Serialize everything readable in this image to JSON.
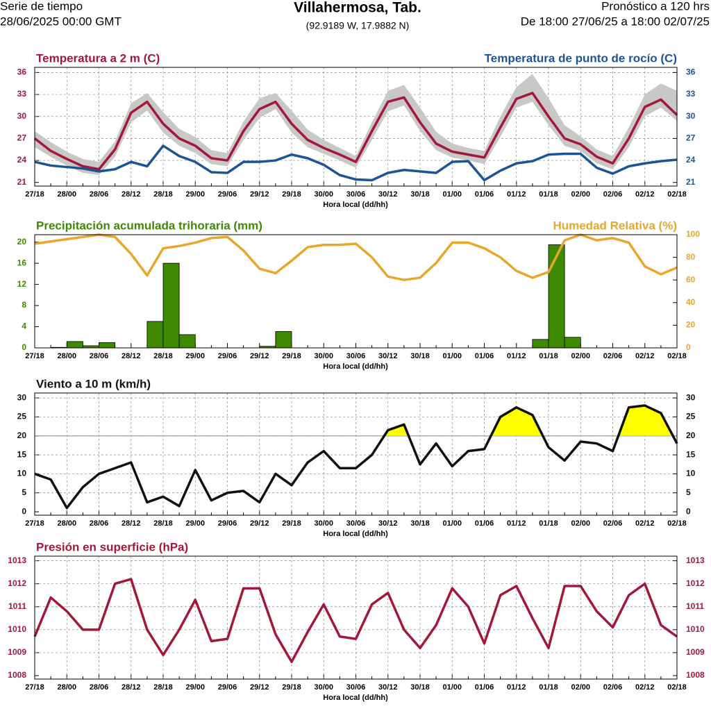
{
  "header": {
    "left_line1": "Serie de tiempo",
    "left_line2": "28/06/2025 00:00 GMT",
    "title": "Villahermosa, Tab.",
    "subtitle": "(92.9189 W, 17.9882 N)",
    "right_line1": "Pronóstico a 120 hrs",
    "right_line2": "De 18:00 27/06/25 a 18:00 02/07/25"
  },
  "chart_data": [
    {
      "type": "line",
      "xlabel": "Hora local (dd/hh)",
      "grid": true,
      "categories": [
        "27/18",
        null,
        "28/00",
        null,
        "28/06",
        null,
        "28/12",
        null,
        "28/18",
        null,
        "29/00",
        null,
        "29/06",
        null,
        "29/12",
        null,
        "29/18",
        null,
        "30/00",
        null,
        "30/06",
        null,
        "30/12",
        null,
        "30/18",
        null,
        "01/00",
        null,
        "01/06",
        null,
        "01/12",
        null,
        "01/18",
        null,
        "02/00",
        null,
        "02/06",
        null,
        "02/12",
        null,
        "02/18"
      ],
      "ylim": [
        20.5,
        36.7
      ],
      "yticks": [
        21,
        24,
        27,
        30,
        33,
        36
      ],
      "y2lim": [
        20.5,
        36.7
      ],
      "y2ticks": [
        21,
        24,
        27,
        30,
        33,
        36
      ],
      "band_color": "#c8c8c8",
      "series": [
        {
          "name": "Temperatura a 2 m (C)",
          "color": "#a3173a",
          "values": [
            27,
            25.3,
            24.2,
            23.2,
            22.8,
            25.5,
            30.5,
            32,
            29,
            27,
            26,
            24.3,
            24,
            28,
            31,
            32,
            29,
            26.8,
            25.7,
            24.8,
            23.8,
            28,
            32,
            32.6,
            29.2,
            26.3,
            25.2,
            24.8,
            24.4,
            28.5,
            32.4,
            33.2,
            30,
            27,
            26.2,
            24.5,
            23.6,
            27,
            31.3,
            32.3,
            30.2
          ],
          "range_high": [
            28,
            26.5,
            25.2,
            24.2,
            23.8,
            26.6,
            31.8,
            33.2,
            30.6,
            28.3,
            27.2,
            25.4,
            25,
            29.3,
            32.5,
            33.2,
            30.8,
            28.2,
            26.8,
            25.7,
            24.6,
            29.2,
            33.5,
            34.3,
            31.2,
            27.9,
            26.3,
            25.7,
            25.3,
            30,
            34,
            35.8,
            32.5,
            28.8,
            27.3,
            25.5,
            24.6,
            28.5,
            33,
            34.5,
            33.5
          ],
          "range_low": [
            25.8,
            24.5,
            23.3,
            22.3,
            22,
            24.5,
            29.2,
            30.8,
            27.8,
            26,
            25,
            23.5,
            23.2,
            26.8,
            29.8,
            31,
            27.8,
            25.8,
            24.9,
            24,
            23,
            26.8,
            30.7,
            31.5,
            28,
            25.4,
            24.4,
            24,
            23.5,
            27.2,
            31.2,
            32,
            28.8,
            26,
            25.3,
            23.6,
            22.8,
            25.8,
            30,
            31.2,
            29.4
          ]
        },
        {
          "name": "Temperatura de punto de rocío (C)",
          "color": "#1b5596",
          "axis": "y2",
          "values": [
            23.8,
            23.3,
            23.1,
            22.9,
            22.5,
            22.8,
            23.8,
            23.2,
            26,
            24.6,
            23.8,
            22.4,
            22.3,
            23.8,
            23.8,
            24,
            24.8,
            24.3,
            23.4,
            22,
            21.4,
            21.3,
            22.3,
            22.7,
            22.5,
            22.3,
            23.8,
            23.9,
            21.3,
            22.6,
            23.6,
            23.9,
            24.8,
            24.9,
            24.9,
            23,
            22.2,
            23.2,
            23.6,
            23.9,
            24.1
          ]
        }
      ]
    },
    {
      "type": "bar",
      "xlabel": "Hora local (dd/hh)",
      "grid": false,
      "categories": [
        "27/18",
        null,
        "28/00",
        null,
        "28/06",
        null,
        "28/12",
        null,
        "28/18",
        null,
        "29/00",
        null,
        "29/06",
        null,
        "29/12",
        null,
        "29/18",
        null,
        "30/00",
        null,
        "30/06",
        null,
        "30/12",
        null,
        "30/18",
        null,
        "01/00",
        null,
        "01/06",
        null,
        "01/12",
        null,
        "01/18",
        null,
        "02/00",
        null,
        "02/06",
        null,
        "02/12",
        null,
        "02/18"
      ],
      "ylim": [
        0,
        21.4
      ],
      "yticks": [
        0,
        4,
        8,
        12,
        16,
        20
      ],
      "y2lim": [
        0,
        100
      ],
      "y2ticks": [
        0,
        20,
        40,
        60,
        80,
        100
      ],
      "series": [
        {
          "name": "Precipitación acumulada trihoraria (mm)",
          "color": "#3d8a00",
          "type": "bar",
          "values": [
            0,
            0,
            0.1,
            1.2,
            0.4,
            1,
            0,
            0,
            5,
            16,
            2.5,
            0,
            0,
            0,
            0,
            0.3,
            3.1,
            0,
            0,
            0,
            0,
            0,
            0,
            0,
            0,
            0,
            0,
            0,
            0,
            0,
            0,
            0,
            1.6,
            19.5,
            2,
            0,
            0,
            0,
            0,
            0,
            0
          ]
        },
        {
          "name": "Humedad Relativa (%)",
          "color": "#e8a72a",
          "type": "line",
          "axis": "y2",
          "values": [
            92,
            94,
            96,
            98,
            100,
            98,
            83,
            64,
            88,
            90,
            93,
            97,
            98,
            86,
            70,
            66,
            77,
            89,
            91,
            91,
            92,
            80,
            63,
            60,
            62,
            75,
            93,
            93,
            88,
            80,
            68,
            62,
            67,
            95,
            100,
            95,
            97,
            93,
            72,
            65,
            71
          ]
        }
      ]
    },
    {
      "type": "line",
      "xlabel": "Hora local (dd/hh)",
      "grid": true,
      "threshold": 20,
      "threshold_color": "#999999",
      "categories": [
        "27/18",
        null,
        "28/00",
        null,
        "28/06",
        null,
        "28/12",
        null,
        "28/18",
        null,
        "29/00",
        null,
        "29/06",
        null,
        "29/12",
        null,
        "29/18",
        null,
        "30/00",
        null,
        "30/06",
        null,
        "30/12",
        null,
        "30/18",
        null,
        "01/00",
        null,
        "01/06",
        null,
        "01/12",
        null,
        "01/18",
        null,
        "02/00",
        null,
        "02/06",
        null,
        "02/12",
        null,
        "02/18"
      ],
      "ylim": [
        -0.9,
        31.3
      ],
      "yticks": [
        0,
        5,
        10,
        15,
        20,
        25,
        30
      ],
      "y2lim": [
        -0.9,
        31.3
      ],
      "y2ticks": [
        0,
        5,
        10,
        15,
        20,
        25,
        30
      ],
      "series": [
        {
          "name": "Viento a 10 m (km/h)",
          "color": "#111111",
          "fill_color": "#ffff00",
          "values": [
            10,
            8.5,
            1,
            6.5,
            10,
            11.5,
            13,
            2.5,
            4,
            1.5,
            11,
            3,
            5,
            5.5,
            2.5,
            10,
            7,
            13,
            16,
            11.5,
            11.5,
            15,
            21.5,
            23,
            12.5,
            18,
            12,
            16,
            16.5,
            25,
            27.5,
            25.5,
            17,
            13.5,
            18.5,
            18,
            16,
            27.5,
            28,
            26,
            18
          ]
        }
      ]
    },
    {
      "type": "line",
      "xlabel": "Hora local (dd/hh)",
      "grid": true,
      "categories": [
        "27/18",
        null,
        "28/00",
        null,
        "28/06",
        null,
        "28/12",
        null,
        "28/18",
        null,
        "29/00",
        null,
        "29/06",
        null,
        "29/12",
        null,
        "29/18",
        null,
        "30/00",
        null,
        "30/06",
        null,
        "30/12",
        null,
        "30/18",
        null,
        "01/00",
        null,
        "01/06",
        null,
        "01/12",
        null,
        "01/18",
        null,
        "02/00",
        null,
        "02/06",
        null,
        "02/12",
        null,
        "02/18"
      ],
      "ylim": [
        1007.85,
        1013.2
      ],
      "yticks": [
        1008,
        1009,
        1010,
        1011,
        1012,
        1013
      ],
      "y2lim": [
        1007.85,
        1013.2
      ],
      "y2ticks": [
        1008,
        1009,
        1010,
        1011,
        1012,
        1013
      ],
      "series": [
        {
          "name": "Presión en superficie (hPa)",
          "color": "#a3173a",
          "values": [
            1009.7,
            1011.4,
            1010.8,
            1010,
            1010,
            1012,
            1012.2,
            1010,
            1008.9,
            1010,
            1011.3,
            1009.5,
            1009.6,
            1011.8,
            1011.8,
            1009.8,
            1008.6,
            1009.9,
            1011.1,
            1009.7,
            1009.6,
            1011.1,
            1011.6,
            1010,
            1009.2,
            1010.2,
            1011.8,
            1011,
            1009.4,
            1011.5,
            1011.9,
            1010.5,
            1009.2,
            1011.9,
            1011.9,
            1010.8,
            1010.1,
            1011.5,
            1012,
            1010.2,
            1009.7
          ]
        }
      ]
    }
  ]
}
